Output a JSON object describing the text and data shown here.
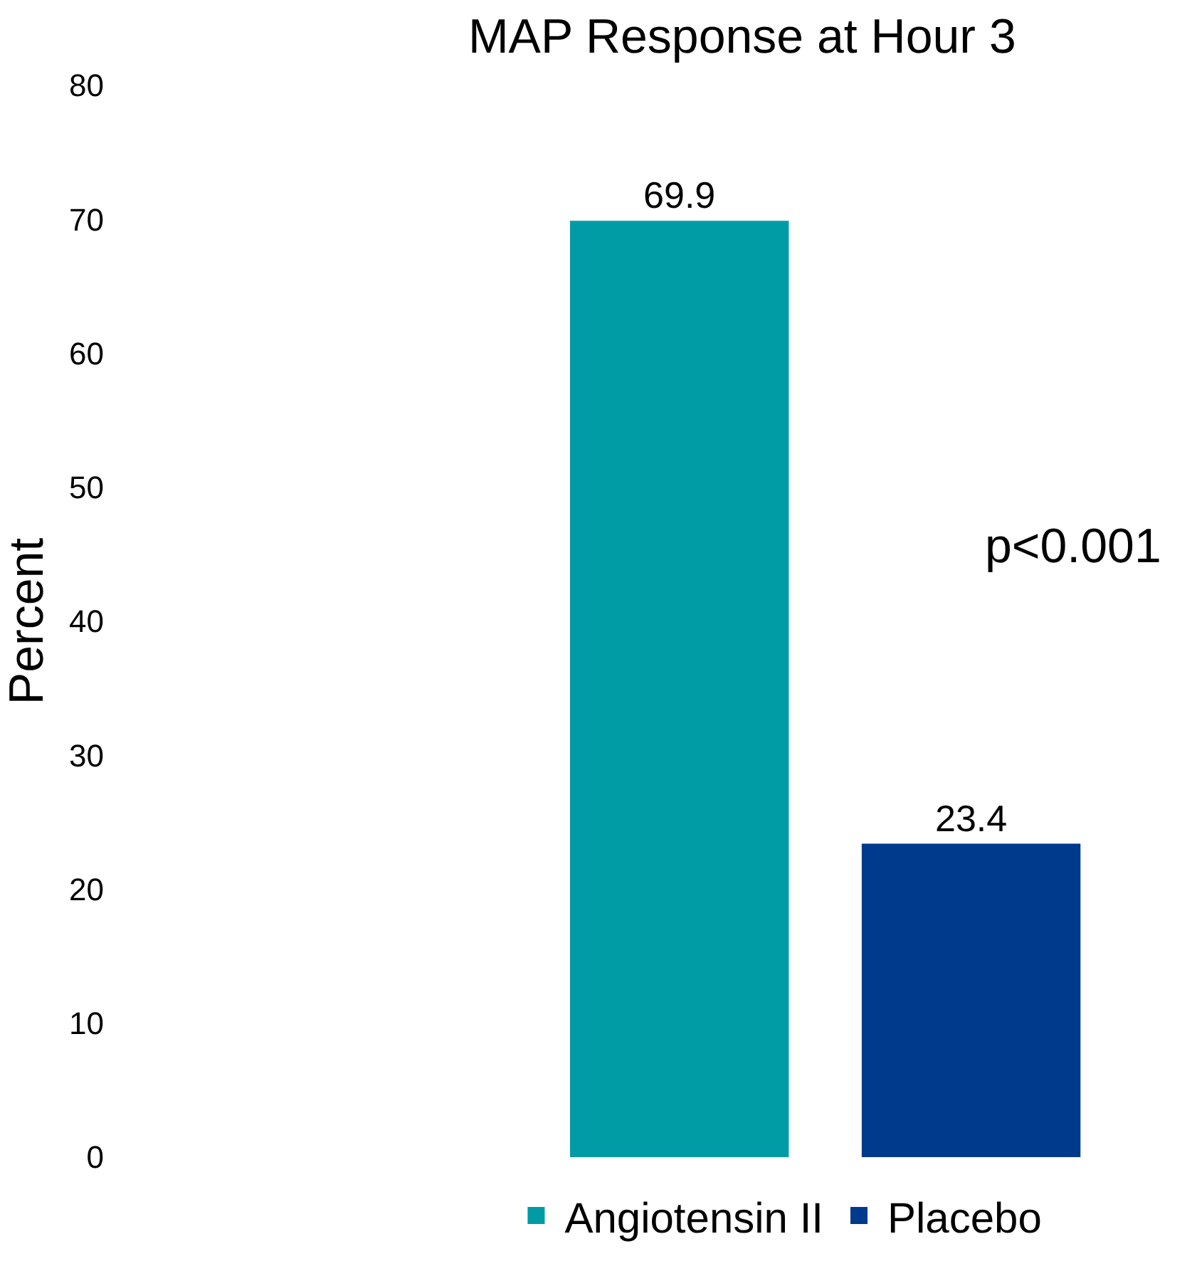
{
  "chart_data": {
    "type": "bar",
    "title": "MAP Response at Hour 3",
    "ylabel": "Percent",
    "categories": [
      null
    ],
    "series": [
      {
        "name": "Angiotensin II",
        "color": "#009ca6",
        "values": [
          69.9
        ]
      },
      {
        "name": "Placebo",
        "color": "#003a8c",
        "values": [
          23.4
        ]
      }
    ],
    "ylim": [
      0,
      80
    ],
    "yticks": [
      0,
      10,
      20,
      30,
      40,
      50,
      60,
      70,
      80
    ],
    "data_labels": true,
    "legend": "bottom",
    "annotations": [
      "p<0.001"
    ]
  }
}
